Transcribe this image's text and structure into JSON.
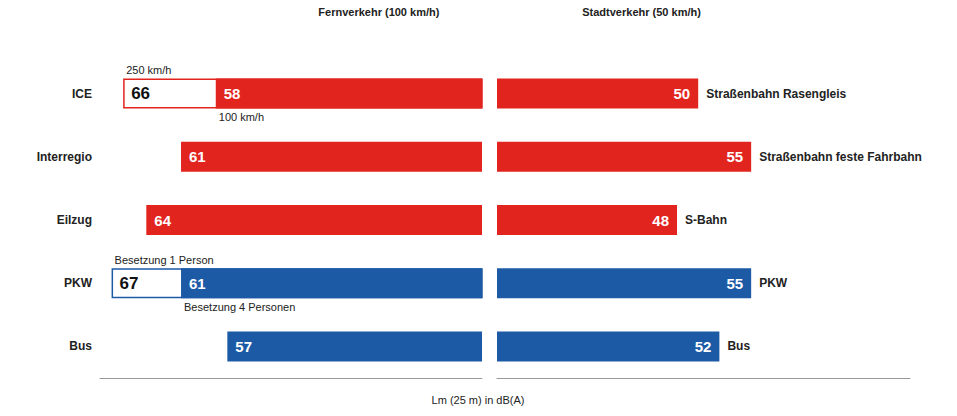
{
  "chart_data": [
    {
      "type": "bar",
      "orientation": "horizontal",
      "title": "Fernverkehr (100 km/h)",
      "categories": [
        "ICE",
        "Interregio",
        "Eilzug",
        "PKW",
        "Bus"
      ],
      "series": [
        {
          "values": [
            66,
            null,
            null,
            67,
            null
          ],
          "color": "#ffffff",
          "annotations": [
            "250 km/h",
            null,
            null,
            "Besetzung 1 Person",
            null
          ]
        },
        {
          "values": [
            58,
            61,
            64,
            61,
            57
          ],
          "colors": [
            "#e2241f",
            "#e2241f",
            "#e2241f",
            "#1d5aa6",
            "#1d5aa6"
          ],
          "annotations": [
            "100 km/h",
            null,
            null,
            "Besetzung 4 Personen",
            null
          ]
        }
      ],
      "xlim": [
        35,
        68
      ],
      "xticks": [],
      "grid": false,
      "data_labels": true,
      "tick_labels": "y"
    },
    {
      "type": "bar",
      "orientation": "horizontal",
      "title": "Stadtverkehr (50 km/h)",
      "categories": [
        "Straßenbahn Rasengleis",
        "Straßenbahn feste Fahrbahn",
        "S-Bahn",
        "PKW",
        "Bus"
      ],
      "series": [
        {
          "values": [
            50,
            55,
            48,
            55,
            52
          ],
          "colors": [
            "#e2241f",
            "#e2241f",
            "#e2241f",
            "#1d5aa6",
            "#1d5aa6"
          ]
        }
      ],
      "xlim": [
        31,
        70
      ],
      "xticks": [],
      "grid": false,
      "data_labels": true,
      "tick_labels": false
    }
  ],
  "xlabel": "Lm (25 m) in dB(A)"
}
